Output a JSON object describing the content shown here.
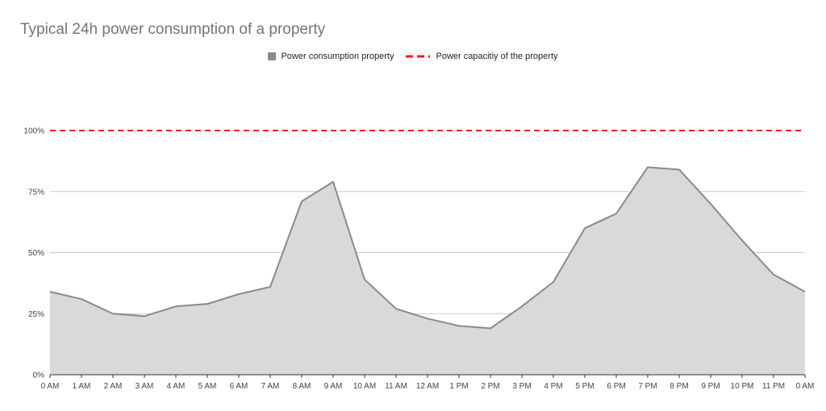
{
  "chart_data": {
    "type": "area",
    "title": "Typical 24h power consumption of a property",
    "xlabel": "",
    "ylabel": "",
    "categories": [
      "0 AM",
      "1 AM",
      "2 AM",
      "3 AM",
      "4 AM",
      "5 AM",
      "6 AM",
      "7 AM",
      "8 AM",
      "9 AM",
      "10 AM",
      "11 AM",
      "12 AM",
      "1 PM",
      "2 PM",
      "3 PM",
      "4 PM",
      "5 PM",
      "6 PM",
      "7 PM",
      "8 PM",
      "9 PM",
      "10 PM",
      "11 PM",
      "0 AM"
    ],
    "series": [
      {
        "name": "Power consumption property",
        "color": "#8a8a8a",
        "fill": "#d9d9d9",
        "values": [
          34,
          31,
          25,
          24,
          28,
          29,
          33,
          36,
          71,
          79,
          39,
          27,
          23,
          20,
          19,
          28,
          38,
          60,
          66,
          85,
          84,
          70,
          55,
          41,
          34
        ]
      },
      {
        "name": "Power capacitiy of the property",
        "color": "#ee1d1d",
        "style": "dashed",
        "values": [
          100,
          100,
          100,
          100,
          100,
          100,
          100,
          100,
          100,
          100,
          100,
          100,
          100,
          100,
          100,
          100,
          100,
          100,
          100,
          100,
          100,
          100,
          100,
          100,
          100
        ]
      }
    ],
    "ylim": [
      0,
      100
    ],
    "yticks": [
      0,
      25,
      50,
      75,
      100
    ],
    "ytick_labels": [
      "0%",
      "25%",
      "50%",
      "75%",
      "100%"
    ],
    "grid": true,
    "legend_position": "top"
  }
}
